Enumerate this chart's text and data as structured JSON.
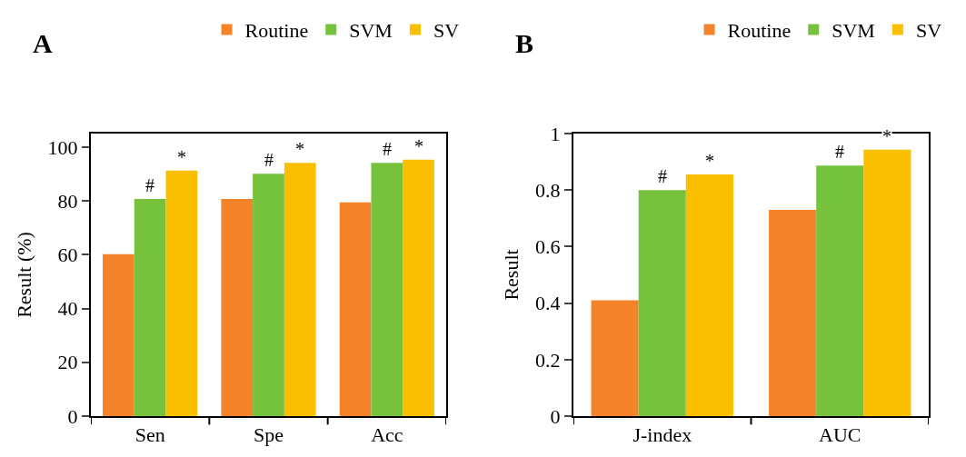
{
  "chart_data": [
    {
      "type": "bar",
      "title": "A",
      "ylabel": "Result (%)",
      "categories": [
        "Sen",
        "Spe",
        "Acc"
      ],
      "series": [
        {
          "name": "Routine",
          "color": "#f5832a",
          "values": [
            60.2,
            80.7,
            79.4
          ]
        },
        {
          "name": "SVM",
          "color": "#77c23c",
          "values": [
            80.7,
            90.1,
            94.1
          ]
        },
        {
          "name": "SV",
          "color": "#fbbf00",
          "values": [
            91.2,
            94.1,
            95.3
          ]
        }
      ],
      "ylim": [
        0,
        105
      ],
      "yticks": [
        0,
        20,
        40,
        60,
        80,
        100
      ],
      "grid": false,
      "legend": "top right",
      "annotations": [
        "#",
        "*",
        "#",
        "*",
        "#",
        "*"
      ]
    },
    {
      "type": "bar",
      "title": "B",
      "ylabel": "Result",
      "categories": [
        "J-index",
        "AUC"
      ],
      "series": [
        {
          "name": "Routine",
          "color": "#f5832a",
          "values": [
            0.41,
            0.73
          ]
        },
        {
          "name": "SVM",
          "color": "#77c23c",
          "values": [
            0.8,
            0.887
          ]
        },
        {
          "name": "SV",
          "color": "#fbbf00",
          "values": [
            0.855,
            0.943
          ]
        }
      ],
      "ylim": [
        0,
        1
      ],
      "yticks": [
        0,
        0.2,
        0.4,
        0.6,
        0.8,
        1
      ],
      "grid": false,
      "legend": "top right",
      "annotations": [
        "#",
        "*",
        "#",
        "*"
      ]
    }
  ]
}
